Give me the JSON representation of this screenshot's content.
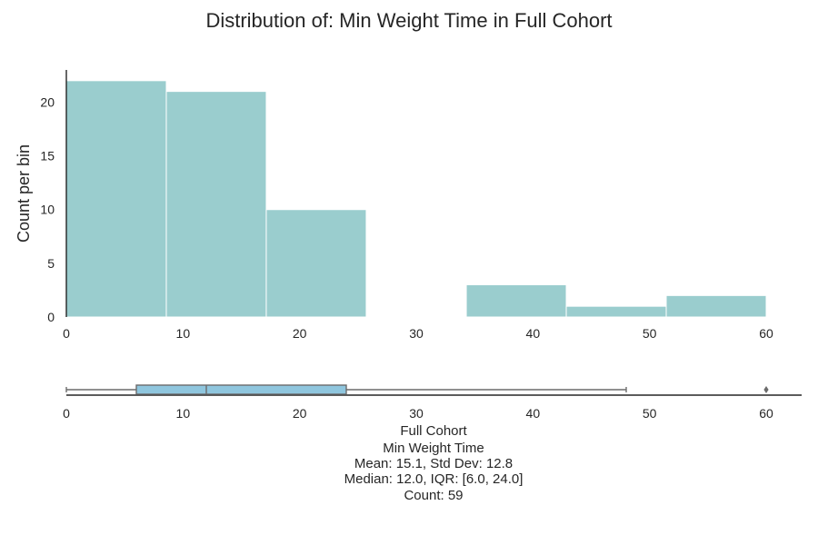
{
  "chart_data": [
    {
      "type": "bar",
      "title": "Distribution of: Min Weight Time in Full Cohort",
      "xlabel": "",
      "ylabel": "Count per bin",
      "xlim": [
        0,
        60
      ],
      "ylim": [
        0,
        23
      ],
      "bins": [
        {
          "start": 0,
          "end": 8.57,
          "count": 22
        },
        {
          "start": 8.57,
          "end": 17.14,
          "count": 21
        },
        {
          "start": 17.14,
          "end": 25.71,
          "count": 10
        },
        {
          "start": 25.71,
          "end": 34.29,
          "count": 0
        },
        {
          "start": 34.29,
          "end": 42.86,
          "count": 3
        },
        {
          "start": 42.86,
          "end": 51.43,
          "count": 1
        },
        {
          "start": 51.43,
          "end": 60,
          "count": 2
        }
      ],
      "xticks": [
        "0",
        "10",
        "20",
        "30",
        "40",
        "50",
        "60"
      ],
      "yticks": [
        "0",
        "5",
        "10",
        "15",
        "20"
      ],
      "grid": false,
      "bar_color": "#9acdce"
    },
    {
      "type": "box",
      "xlim": [
        0,
        63
      ],
      "whisker_low": 0,
      "q1": 6.0,
      "median": 12.0,
      "q3": 24.0,
      "whisker_high": 48,
      "outliers": [
        60
      ],
      "xticks": [
        "0",
        "10",
        "20",
        "30",
        "40",
        "50",
        "60"
      ],
      "box_color": "#8fc6de"
    }
  ],
  "stats": {
    "line1": "Full Cohort",
    "line2": "Min Weight Time",
    "line3": "Mean: 15.1, Std Dev: 12.8",
    "line4": "Median: 12.0, IQR: [6.0, 24.0]",
    "line5": "Count: 59"
  }
}
